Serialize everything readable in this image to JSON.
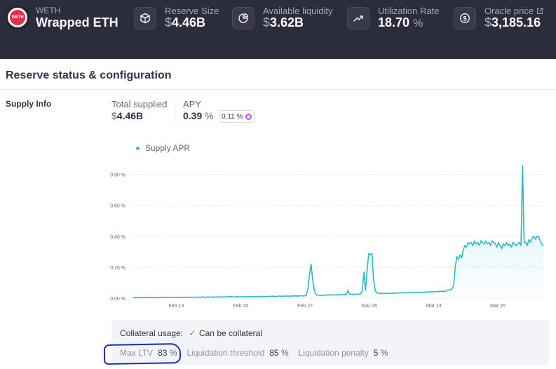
{
  "asset": {
    "logo_text": "WETH",
    "symbol": "WETH",
    "name": "Wrapped ETH"
  },
  "stats": [
    {
      "label": "Reserve Size",
      "symbol": "$",
      "value": "4.46B",
      "icon": "cube-icon"
    },
    {
      "label": "Available liquidity",
      "symbol": "$",
      "value": "3.62B",
      "icon": "pie-chart-icon"
    },
    {
      "label": "Utilization Rate",
      "value": "18.70",
      "unit": "%",
      "icon": "trend-up-icon"
    },
    {
      "label": "Oracle price",
      "symbol": "$",
      "value": "3,185.16",
      "icon": "dollar-circle-icon",
      "link_icon": "external-link-icon"
    }
  ],
  "section": {
    "title": "Reserve status & configuration",
    "supply_label": "Supply Info"
  },
  "supply": {
    "total_supplied_label": "Total supplied",
    "total_supplied_symbol": "$",
    "total_supplied_value": "4.46B",
    "apy_label": "APY",
    "apy_value": "0.39",
    "apy_unit": "%",
    "apy_badge_value": "0.11",
    "apy_badge_unit": "%"
  },
  "chart_data": {
    "type": "area",
    "legend": [
      "Supply APR"
    ],
    "color": "#2ebac6",
    "y_ticks": [
      "0.00 %",
      "0.20 %",
      "0.40 %",
      "0.60 %",
      "0.80 %"
    ],
    "x_ticks": [
      "Feb 13",
      "Feb 20",
      "Feb 27",
      "Mar 06",
      "Mar 13",
      "Mar 20"
    ],
    "ylim": [
      0,
      0.88
    ],
    "grid": true,
    "series": [
      {
        "values": [
          0.004,
          0.003,
          0.004,
          0.003,
          0.004,
          0.003,
          0.005,
          0.004,
          0.003,
          0.004,
          0.004,
          0.005,
          0.004,
          0.003,
          0.004,
          0.005,
          0.004,
          0.004,
          0.006,
          0.004,
          0.005,
          0.004,
          0.005,
          0.006,
          0.004,
          0.005,
          0.006,
          0.005,
          0.004,
          0.005,
          0.006,
          0.005,
          0.006,
          0.005,
          0.006,
          0.007,
          0.006,
          0.005,
          0.006,
          0.007,
          0.006,
          0.007,
          0.006,
          0.008,
          0.007,
          0.006,
          0.007,
          0.008,
          0.006,
          0.007,
          0.008,
          0.007,
          0.008,
          0.007,
          0.009,
          0.008,
          0.007,
          0.008,
          0.009,
          0.008,
          0.01,
          0.012,
          0.009,
          0.008,
          0.009,
          0.01,
          0.009,
          0.008,
          0.01,
          0.009,
          0.01,
          0.009,
          0.01,
          0.011,
          0.01,
          0.011,
          0.01,
          0.009,
          0.011,
          0.01,
          0.011,
          0.012,
          0.011,
          0.01,
          0.012,
          0.011,
          0.012,
          0.013,
          0.012,
          0.011,
          0.012,
          0.014,
          0.012,
          0.013,
          0.012,
          0.014,
          0.013,
          0.012,
          0.014,
          0.013,
          0.014,
          0.015,
          0.014,
          0.013,
          0.015,
          0.016,
          0.014,
          0.015,
          0.02,
          0.06,
          0.15,
          0.22,
          0.12,
          0.05,
          0.025,
          0.02,
          0.018,
          0.017,
          0.018,
          0.02,
          0.019,
          0.021,
          0.02,
          0.022,
          0.019,
          0.021,
          0.023,
          0.02,
          0.022,
          0.021,
          0.023,
          0.022,
          0.024,
          0.022,
          0.05,
          0.028,
          0.024,
          0.026,
          0.024,
          0.026,
          0.025,
          0.027,
          0.029,
          0.05,
          0.17,
          0.05,
          0.18,
          0.29,
          0.28,
          0.29,
          0.12,
          0.05,
          0.035,
          0.032,
          0.03,
          0.031,
          0.03,
          0.029,
          0.031,
          0.032,
          0.03,
          0.032,
          0.031,
          0.033,
          0.032,
          0.034,
          0.033,
          0.035,
          0.034,
          0.033,
          0.035,
          0.036,
          0.034,
          0.036,
          0.035,
          0.037,
          0.038,
          0.036,
          0.037,
          0.038,
          0.037,
          0.039,
          0.038,
          0.04,
          0.039,
          0.041,
          0.04,
          0.042,
          0.041,
          0.043,
          0.042,
          0.044,
          0.043,
          0.045,
          0.044,
          0.046,
          0.048,
          0.052,
          0.055,
          0.06,
          0.08,
          0.2,
          0.27,
          0.25,
          0.28,
          0.26,
          0.31,
          0.34,
          0.33,
          0.36,
          0.35,
          0.36,
          0.34,
          0.37,
          0.35,
          0.36,
          0.34,
          0.37,
          0.36,
          0.35,
          0.37,
          0.35,
          0.36,
          0.34,
          0.37,
          0.36,
          0.35,
          0.33,
          0.36,
          0.34,
          0.32,
          0.35,
          0.34,
          0.36,
          0.34,
          0.35,
          0.33,
          0.36,
          0.35,
          0.34,
          0.35,
          0.36,
          0.34,
          0.86,
          0.36,
          0.36,
          0.34,
          0.38,
          0.36,
          0.39,
          0.4,
          0.38,
          0.4,
          0.4,
          0.37,
          0.35,
          0.34
        ]
      }
    ]
  },
  "collateral": {
    "usage_label": "Collateral usage:",
    "status_icon": "check-icon",
    "status_text": "Can be collateral",
    "max_ltv_label": "Max LTV",
    "max_ltv_value": "83",
    "liq_threshold_label": "Liquidation threshold",
    "liq_threshold_value": "85",
    "liq_penalty_label": "Liquidation penalty",
    "liq_penalty_value": "5",
    "unit": "%"
  }
}
